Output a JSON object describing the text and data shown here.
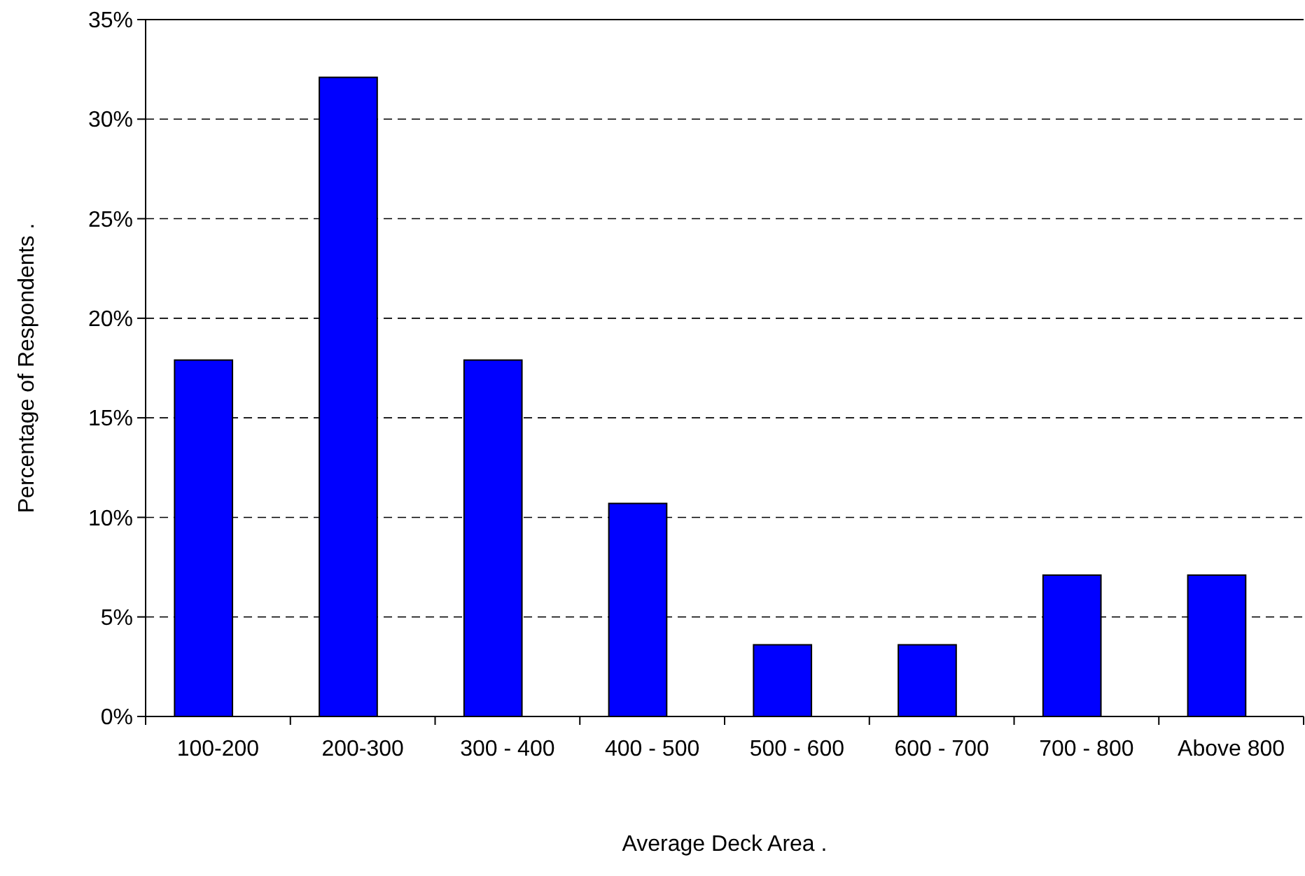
{
  "chart_data": {
    "type": "bar",
    "xlabel": "Average Deck Area  .",
    "ylabel": "Percentage of Respondents  .",
    "categories": [
      "100-200",
      "200-300",
      "300 - 400",
      "400 - 500",
      "500 - 600",
      "600 - 700",
      "700 - 800",
      "Above 800"
    ],
    "values": [
      17.9,
      32.1,
      17.9,
      10.7,
      3.6,
      3.6,
      7.1,
      7.1
    ],
    "color": "#0000ff",
    "ylim": [
      0,
      35
    ],
    "yticks": [
      {
        "value": 0,
        "label": "0%"
      },
      {
        "value": 5,
        "label": "5%"
      },
      {
        "value": 10,
        "label": "10%"
      },
      {
        "value": 15,
        "label": "15%"
      },
      {
        "value": 20,
        "label": "20%"
      },
      {
        "value": 25,
        "label": "25%"
      },
      {
        "value": 30,
        "label": "30%"
      },
      {
        "value": 35,
        "label": "35%"
      }
    ],
    "grid": "y"
  }
}
